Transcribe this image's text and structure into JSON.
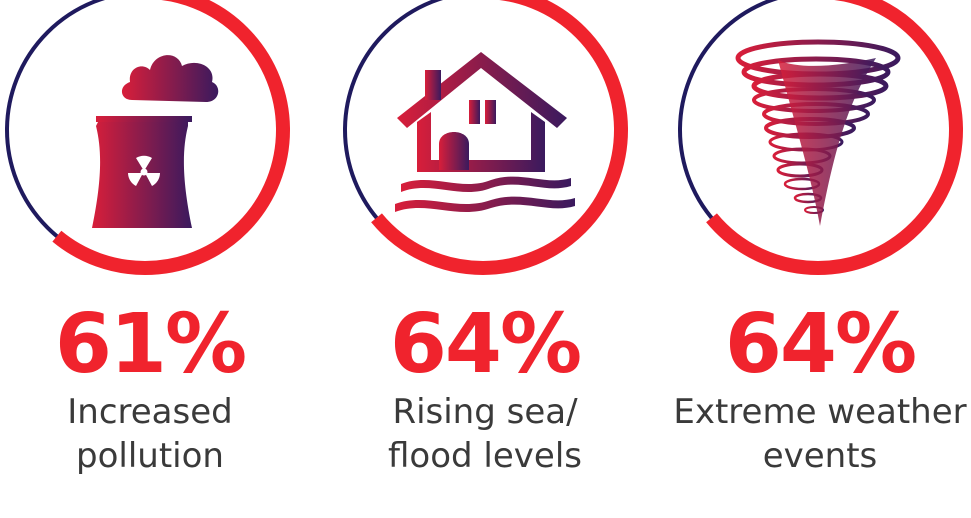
{
  "colors": {
    "accent_red": "#f0232d",
    "ring_navy": "#1f1a5e",
    "icon_gradient_start": "#d81e3a",
    "icon_gradient_end": "#3a1a5e",
    "label_text": "#3a3a3a"
  },
  "stats": [
    {
      "icon": "power-plant-pollution-icon",
      "percent": 61,
      "percent_label": "61%",
      "label_line1": "Increased",
      "label_line2": "pollution"
    },
    {
      "icon": "flooded-house-icon",
      "percent": 64,
      "percent_label": "64%",
      "label_line1": "Rising sea/",
      "label_line2": "flood levels"
    },
    {
      "icon": "tornado-icon",
      "percent": 64,
      "percent_label": "64%",
      "label_line1": "Extreme weather",
      "label_line2": "events"
    }
  ]
}
